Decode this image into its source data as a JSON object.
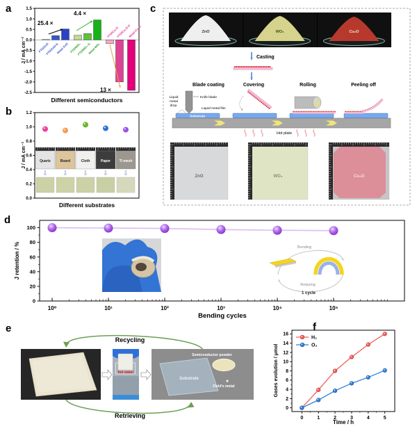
{
  "panels": {
    "a": {
      "label": "a"
    },
    "b": {
      "label": "b",
      "arrow_icon": "⇩"
    },
    "c": {
      "label": "c",
      "powders": [
        {
          "name": "ZnO",
          "color": "#efefef",
          "label_color": "#333333"
        },
        {
          "name": "WO₃",
          "color": "#d6d38c",
          "label_color": "#4a4a20"
        },
        {
          "name": "Cu₂O",
          "color": "#b7392d",
          "label_color": "#f5e8e0"
        }
      ],
      "casting_label": "Casting",
      "steps": [
        "Blade coating",
        "Covering",
        "Rolling",
        "Peeling off"
      ],
      "schematic_labels": {
        "liquid_metal_drop": [
          "Liquid",
          "metal",
          "drop."
        ],
        "knife_blade": "Knife blade",
        "liquid_metal_film": "Liquid metal film",
        "substrate": "Substrate",
        "hot_plate": "Hot plate"
      },
      "films": [
        {
          "name": "ZnO",
          "color": "#d8d9db",
          "label_color": "#6a6a6a"
        },
        {
          "name": "WO₃",
          "color": "#dfe4c5",
          "label_color": "#8c8c6a"
        },
        {
          "name": "Cu₂O",
          "color": "#dc8e99",
          "label_color": "#f2e8c8"
        }
      ]
    },
    "d": {
      "label": "d",
      "inset": {
        "bending": "Bending",
        "relaxing": "Relaxing",
        "cycle": "1 cycle"
      }
    },
    "e": {
      "label": "e",
      "recycling": "Recycling",
      "retrieving": "Retrieving",
      "hot_water": "hot water",
      "semiconductor_powder": "Semiconductor powder",
      "substrate": "Substrate",
      "fields_metal": "Field's metal"
    },
    "f": {
      "label": "f"
    }
  },
  "chart_data": [
    {
      "id": "a",
      "type": "bar",
      "xlabel": "Different semiconductors",
      "ylabel": "J / mA cm⁻²",
      "ylim": [
        -2.5,
        1.5
      ],
      "ytick_step": 0.5,
      "categories": [
        "FTO/ZnO",
        "FTO/ZnO-G",
        "Metal-ZnO",
        "FTO/WO₃",
        "FTO/WO₃-G",
        "Metal-WO₃",
        "FTO/Cu₂O",
        "FTO/Cu₂O-G",
        "Metal-Cu₂O"
      ],
      "values": [
        0.02,
        0.2,
        0.52,
        0.22,
        0.3,
        0.95,
        -0.18,
        -2.0,
        -2.4
      ],
      "bar_colors": [
        "#b9dcf2",
        "#3556cc",
        "#2a42c6",
        "#bedb8e",
        "#5ec23e",
        "#16b216",
        "#f6aacb",
        "#dd4394",
        "#e4007d"
      ],
      "group_colors": [
        "#3050cc",
        "#1f9e1f",
        "#e4328a"
      ],
      "annotations": [
        {
          "text": "25.4 ×",
          "arrow_color": "#000000"
        },
        {
          "text": "4.4 ×",
          "arrow_color": "#2fae2f"
        },
        {
          "text": "13 ×",
          "arrow_color": "#f09a45"
        }
      ]
    },
    {
      "id": "b",
      "type": "scatter",
      "xlabel": "Different substrates",
      "ylabel": "J / mA cm⁻²",
      "ylim": [
        0,
        1.2
      ],
      "ytick_step": 0.2,
      "categories": [
        "Quartz",
        "Board",
        "Cloth",
        "Paper",
        "Ti mesh"
      ],
      "values": [
        0.97,
        0.95,
        1.03,
        0.98,
        0.96
      ],
      "point_colors": [
        "#f23b9b",
        "#f59c4f",
        "#6cb32c",
        "#2f70d8",
        "#9b50e8"
      ],
      "substrate_colors": [
        "#e4e4e4",
        "#dcc59c",
        "#f0f0ee",
        "#3c3c3c",
        "#9c9890"
      ],
      "substrate_label_colors": [
        "#222222",
        "#222222",
        "#222222",
        "#ffffff",
        "#ffffff"
      ],
      "film_colors": [
        "#ccd1a6",
        "#cdd2a7",
        "#ccd1a6",
        "#c9cfa4",
        "#d5d8ba"
      ]
    },
    {
      "id": "d",
      "type": "line",
      "xlabel": "Bending cycles",
      "ylabel": "J retention / %",
      "x_scale": "log",
      "x_tick_labels": [
        "10⁰",
        "10¹",
        "10²",
        "10³",
        "10⁴",
        "10⁵"
      ],
      "yticks": [
        0,
        20,
        40,
        60,
        80,
        100
      ],
      "values": [
        100,
        99.5,
        99,
        97.5,
        96.5,
        96
      ],
      "point_color": "#9b44e0",
      "line_color": "#dcbcf2"
    },
    {
      "id": "f",
      "type": "line",
      "xlabel": "Time / h",
      "ylabel": "Gases evolution / μmol",
      "x": [
        0,
        1,
        2,
        3,
        4,
        5
      ],
      "yticks": [
        0,
        2,
        4,
        6,
        8,
        10,
        12,
        14,
        16
      ],
      "series": [
        {
          "name": "H₂",
          "color": "#f25f5b",
          "edge": "#b03030",
          "values": [
            0,
            3.9,
            8.0,
            11.0,
            13.7,
            16.0
          ]
        },
        {
          "name": "O₂",
          "color": "#2e7fdb",
          "edge": "#1a4f96",
          "values": [
            0,
            1.7,
            3.7,
            5.3,
            6.6,
            8.1
          ]
        }
      ],
      "legend_position": "top-left"
    }
  ]
}
